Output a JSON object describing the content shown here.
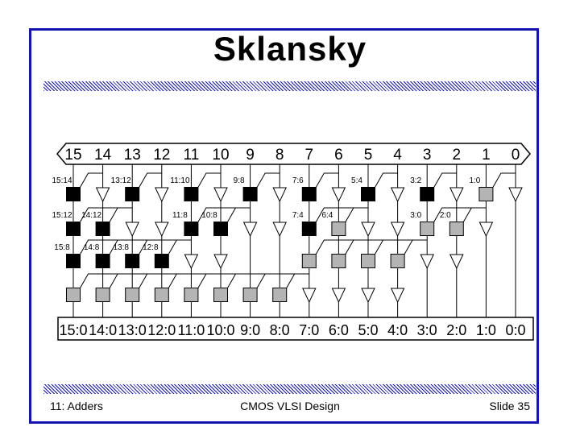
{
  "title": "Sklansky",
  "footer": {
    "left": "11: Adders",
    "center": "CMOS VLSI Design",
    "right": "Slide 35"
  },
  "inputs": [
    "15",
    "14",
    "13",
    "12",
    "11",
    "10",
    "9",
    "8",
    "7",
    "6",
    "5",
    "4",
    "3",
    "2",
    "1",
    "0"
  ],
  "outputs": [
    "15:0",
    "14:0",
    "13:0",
    "12:0",
    "11:0",
    "10:0",
    "9:0",
    "8:0",
    "7:0",
    "6:0",
    "5:0",
    "4:0",
    "3:0",
    "2:0",
    "1:0",
    "0:0"
  ],
  "rows": [
    {
      "labels": [
        {
          "col": 0,
          "text": "15:14"
        },
        {
          "col": 2,
          "text": "13:12"
        },
        {
          "col": 4,
          "text": "11:10"
        },
        {
          "col": 6,
          "text": "9:8"
        },
        {
          "col": 8,
          "text": "7:6"
        },
        {
          "col": 10,
          "text": "5:4"
        },
        {
          "col": 12,
          "text": "3:2"
        },
        {
          "col": 14,
          "text": "1:0"
        }
      ],
      "cells": [
        "black",
        "buffer",
        "black",
        "buffer",
        "black",
        "buffer",
        "black",
        "buffer",
        "black",
        "buffer",
        "black",
        "buffer",
        "black",
        "buffer",
        "gray",
        "buffer"
      ]
    },
    {
      "labels": [
        {
          "col": 0,
          "text": "15:12"
        },
        {
          "col": 1,
          "text": "14:12"
        },
        {
          "col": 4,
          "text": "11:8"
        },
        {
          "col": 5,
          "text": "10:8"
        },
        {
          "col": 8,
          "text": "7:4"
        },
        {
          "col": 9,
          "text": "6:4"
        },
        {
          "col": 12,
          "text": "3:0"
        },
        {
          "col": 13,
          "text": "2:0"
        }
      ],
      "cells": [
        "black",
        "black",
        "buffer",
        "buffer",
        "black",
        "black",
        "buffer",
        "buffer",
        "black",
        "gray",
        "buffer",
        "buffer",
        "gray",
        "gray",
        "buffer",
        "none"
      ]
    },
    {
      "labels": [
        {
          "col": 0,
          "text": "15:8"
        },
        {
          "col": 1,
          "text": "14:8"
        },
        {
          "col": 2,
          "text": "13:8"
        },
        {
          "col": 3,
          "text": "12:8"
        }
      ],
      "cells": [
        "black",
        "black",
        "black",
        "black",
        "buffer",
        "buffer",
        "none",
        "none",
        "gray",
        "gray",
        "gray",
        "gray",
        "buffer",
        "buffer",
        "none",
        "none"
      ]
    },
    {
      "labels": [],
      "cells": [
        "gray",
        "gray",
        "gray",
        "gray",
        "gray",
        "gray",
        "gray",
        "gray",
        "buffer",
        "buffer",
        "buffer",
        "buffer",
        "none",
        "none",
        "none",
        "none"
      ]
    }
  ],
  "colors": {
    "border": "#1414b4",
    "black_cell": "#000000",
    "gray_cell": "#b4b4b4"
  }
}
